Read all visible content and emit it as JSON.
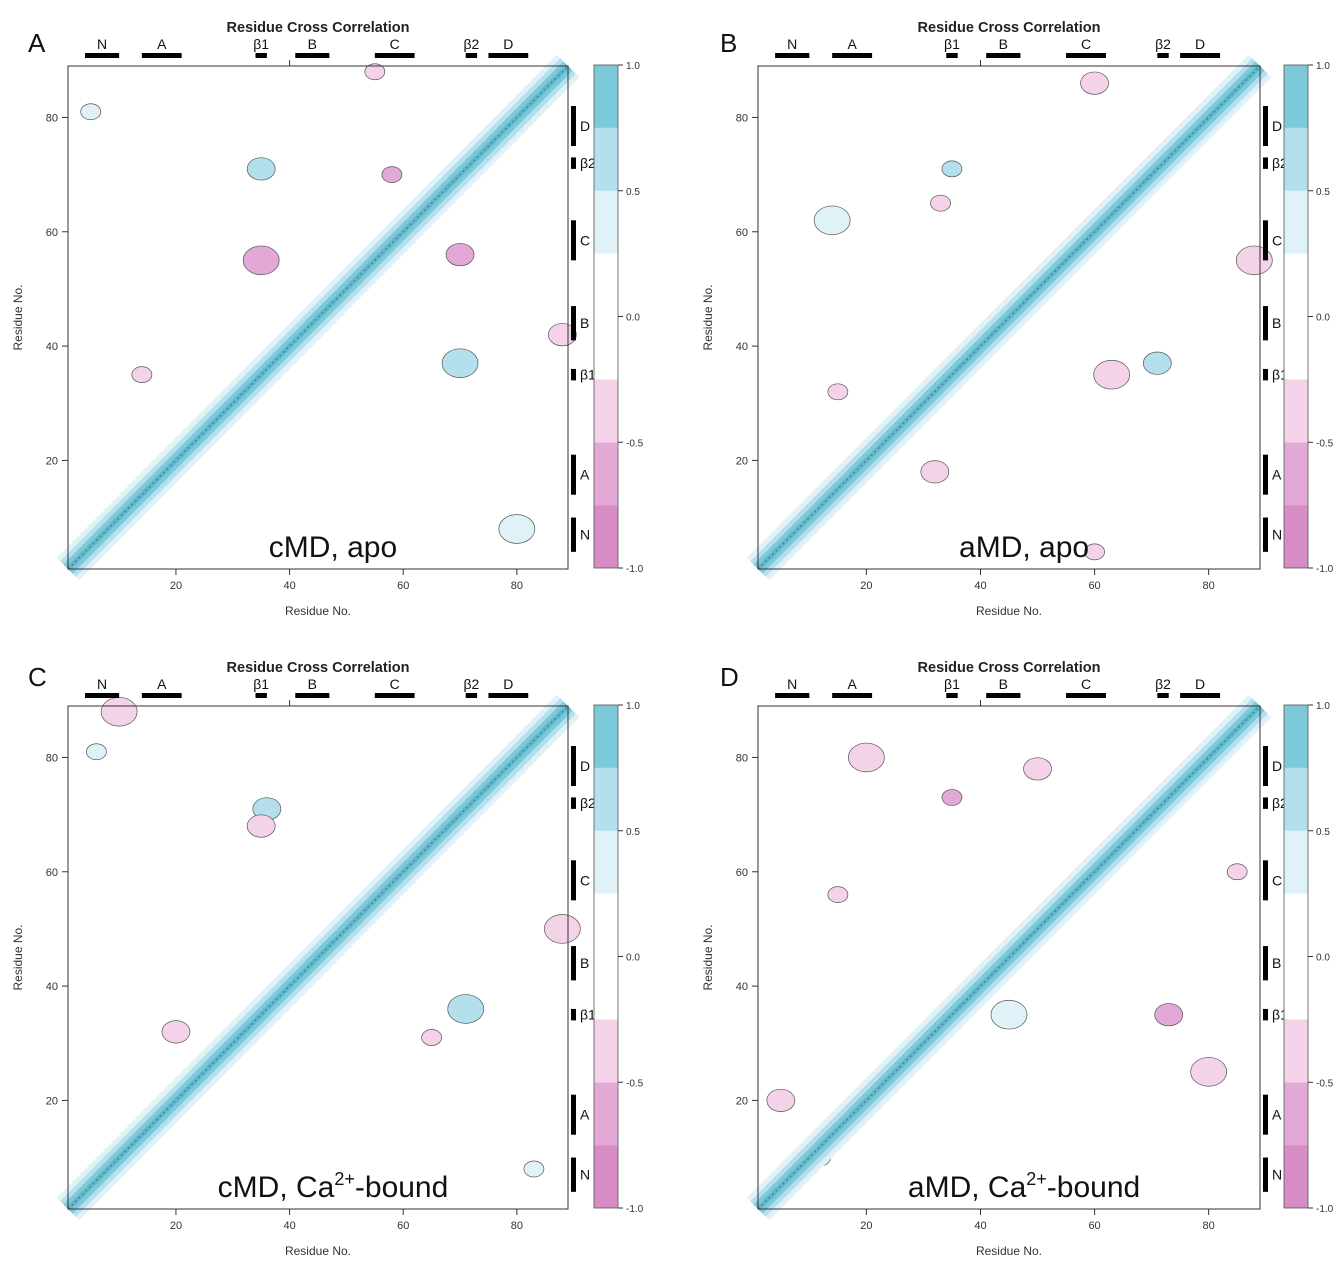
{
  "chart_data": [
    {
      "type": "heatmap",
      "panel_letter": "A",
      "title": "Residue Cross Correlation",
      "xlabel": "Residue No.",
      "ylabel": "Residue No.",
      "xlim": [
        1,
        89
      ],
      "ylim": [
        1,
        89
      ],
      "x_ticks": [
        20,
        40,
        60,
        80
      ],
      "y_ticks": [
        20,
        40,
        60,
        80
      ],
      "caption": "cMD, apo",
      "colorbar": {
        "range": [
          -1.0,
          1.0
        ],
        "tick_labels": [
          "1.0",
          "0.5",
          "0.0",
          "-0.5",
          "-1.0"
        ],
        "tick_values": [
          1.0,
          0.5,
          0.0,
          -0.5,
          -1.0
        ]
      },
      "structure_segments": [
        {
          "label": "N",
          "start": 4,
          "end": 10
        },
        {
          "label": "A",
          "start": 14,
          "end": 21
        },
        {
          "label": "β1",
          "start": 34,
          "end": 36
        },
        {
          "label": "B",
          "start": 41,
          "end": 47
        },
        {
          "label": "C",
          "start": 55,
          "end": 62
        },
        {
          "label": "β2",
          "start": 71,
          "end": 73
        },
        {
          "label": "D",
          "start": 75,
          "end": 82
        }
      ],
      "diagonal_correlation": 1.0,
      "notable_regions": [
        {
          "x": 5,
          "y": 81,
          "value": 0.4
        },
        {
          "x": 35,
          "y": 71,
          "value": 0.6
        },
        {
          "x": 70,
          "y": 37,
          "value": 0.6
        },
        {
          "x": 58,
          "y": 70,
          "value": -0.6
        },
        {
          "x": 70,
          "y": 56,
          "value": -0.6
        },
        {
          "x": 35,
          "y": 55,
          "value": -0.6
        },
        {
          "x": 55,
          "y": 88,
          "value": -0.4
        },
        {
          "x": 88,
          "y": 42,
          "value": -0.4
        },
        {
          "x": 80,
          "y": 8,
          "value": 0.3
        },
        {
          "x": 14,
          "y": 35,
          "value": -0.4
        }
      ]
    },
    {
      "type": "heatmap",
      "panel_letter": "B",
      "title": "Residue Cross Correlation",
      "xlabel": "Residue No.",
      "ylabel": "Residue No.",
      "xlim": [
        1,
        89
      ],
      "ylim": [
        1,
        89
      ],
      "x_ticks": [
        20,
        40,
        60,
        80
      ],
      "y_ticks": [
        20,
        40,
        60,
        80
      ],
      "caption": "aMD, apo",
      "colorbar": {
        "range": [
          -1.0,
          1.0
        ],
        "tick_labels": [
          "1.0",
          "0.5",
          "0.0",
          "-0.5",
          "-1.0"
        ],
        "tick_values": [
          1.0,
          0.5,
          0.0,
          -0.5,
          -1.0
        ]
      },
      "structure_segments": [
        {
          "label": "N",
          "start": 4,
          "end": 10
        },
        {
          "label": "A",
          "start": 14,
          "end": 21
        },
        {
          "label": "β1",
          "start": 34,
          "end": 36
        },
        {
          "label": "B",
          "start": 41,
          "end": 47
        },
        {
          "label": "C",
          "start": 55,
          "end": 62
        },
        {
          "label": "β2",
          "start": 71,
          "end": 73
        },
        {
          "label": "D",
          "start": 75,
          "end": 82
        }
      ],
      "diagonal_correlation": 1.0,
      "notable_regions": [
        {
          "x": 35,
          "y": 71,
          "value": 0.6
        },
        {
          "x": 71,
          "y": 37,
          "value": 0.6
        },
        {
          "x": 14,
          "y": 62,
          "value": 0.4
        },
        {
          "x": 33,
          "y": 65,
          "value": -0.4
        },
        {
          "x": 60,
          "y": 86,
          "value": -0.4
        },
        {
          "x": 88,
          "y": 55,
          "value": -0.5
        },
        {
          "x": 15,
          "y": 32,
          "value": -0.4
        },
        {
          "x": 32,
          "y": 18,
          "value": -0.4
        },
        {
          "x": 63,
          "y": 35,
          "value": -0.4
        },
        {
          "x": 60,
          "y": 4,
          "value": -0.3
        }
      ]
    },
    {
      "type": "heatmap",
      "panel_letter": "C",
      "title": "Residue Cross Correlation",
      "xlabel": "Residue No.",
      "ylabel": "Residue No.",
      "xlim": [
        1,
        89
      ],
      "ylim": [
        1,
        89
      ],
      "x_ticks": [
        20,
        40,
        60,
        80
      ],
      "y_ticks": [
        20,
        40,
        60,
        80
      ],
      "caption_base": "cMD, Ca",
      "caption_sup": "2+",
      "caption_tail": "-bound",
      "colorbar": {
        "range": [
          -1.0,
          1.0
        ],
        "tick_labels": [
          "1.0",
          "0.5",
          "0.0",
          "-0.5",
          "-1.0"
        ],
        "tick_values": [
          1.0,
          0.5,
          0.0,
          -0.5,
          -1.0
        ]
      },
      "structure_segments": [
        {
          "label": "N",
          "start": 4,
          "end": 10
        },
        {
          "label": "A",
          "start": 14,
          "end": 21
        },
        {
          "label": "β1",
          "start": 34,
          "end": 36
        },
        {
          "label": "B",
          "start": 41,
          "end": 47
        },
        {
          "label": "C",
          "start": 55,
          "end": 62
        },
        {
          "label": "β2",
          "start": 71,
          "end": 73
        },
        {
          "label": "D",
          "start": 75,
          "end": 82
        }
      ],
      "diagonal_correlation": 1.0,
      "notable_regions": [
        {
          "x": 6,
          "y": 81,
          "value": 0.3
        },
        {
          "x": 36,
          "y": 71,
          "value": 0.6
        },
        {
          "x": 71,
          "y": 36,
          "value": 0.6
        },
        {
          "x": 31,
          "y": 32,
          "value": 0.9
        },
        {
          "x": 35,
          "y": 68,
          "value": -0.4
        },
        {
          "x": 88,
          "y": 50,
          "value": -0.4
        },
        {
          "x": 65,
          "y": 31,
          "value": -0.4
        },
        {
          "x": 20,
          "y": 32,
          "value": -0.4
        },
        {
          "x": 10,
          "y": 88,
          "value": -0.4
        },
        {
          "x": 83,
          "y": 8,
          "value": 0.3
        }
      ]
    },
    {
      "type": "heatmap",
      "panel_letter": "D",
      "title": "Residue Cross Correlation",
      "xlabel": "Residue No.",
      "ylabel": "Residue No.",
      "xlim": [
        1,
        89
      ],
      "ylim": [
        1,
        89
      ],
      "x_ticks": [
        20,
        40,
        60,
        80
      ],
      "y_ticks": [
        20,
        40,
        60,
        80
      ],
      "caption_base": "aMD, Ca",
      "caption_sup": "2+",
      "caption_tail": "-bound",
      "colorbar": {
        "range": [
          -1.0,
          1.0
        ],
        "tick_labels": [
          "1.0",
          "0.5",
          "0.0",
          "-0.5",
          "-1.0"
        ],
        "tick_values": [
          1.0,
          0.5,
          0.0,
          -0.5,
          -1.0
        ]
      },
      "structure_segments": [
        {
          "label": "N",
          "start": 4,
          "end": 10
        },
        {
          "label": "A",
          "start": 14,
          "end": 21
        },
        {
          "label": "β1",
          "start": 34,
          "end": 36
        },
        {
          "label": "B",
          "start": 41,
          "end": 47
        },
        {
          "label": "C",
          "start": 55,
          "end": 62
        },
        {
          "label": "β2",
          "start": 71,
          "end": 73
        },
        {
          "label": "D",
          "start": 75,
          "end": 82
        }
      ],
      "diagonal_correlation": 1.0,
      "notable_regions": [
        {
          "x": 35,
          "y": 73,
          "value": -0.6
        },
        {
          "x": 73,
          "y": 35,
          "value": -0.6
        },
        {
          "x": 20,
          "y": 80,
          "value": -0.4
        },
        {
          "x": 15,
          "y": 56,
          "value": -0.4
        },
        {
          "x": 50,
          "y": 78,
          "value": -0.4
        },
        {
          "x": 80,
          "y": 25,
          "value": -0.4
        },
        {
          "x": 85,
          "y": 60,
          "value": -0.4
        },
        {
          "x": 5,
          "y": 20,
          "value": -0.4
        },
        {
          "x": 45,
          "y": 35,
          "value": 0.3
        },
        {
          "x": 12,
          "y": 10,
          "value": -0.3
        }
      ]
    }
  ]
}
